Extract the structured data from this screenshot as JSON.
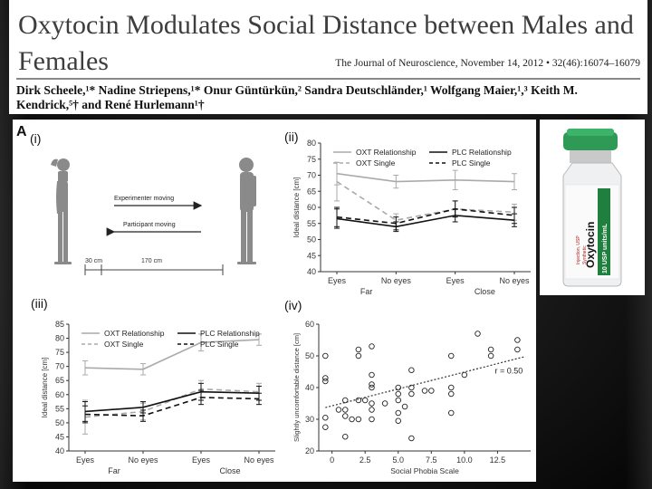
{
  "header": {
    "title": "Oxytocin Modulates Social Distance between Males and Females",
    "journal": "The Journal of Neuroscience, November 14, 2012 • 32(46):16074–16079",
    "authors": "Dirk Scheele,¹* Nadine Striepens,¹* Onur Güntürkün,² Sandra Deutschländer,¹ Wolfgang Maier,¹,³ Keith M. Kendrick,⁵† and René Hurlemann¹†"
  },
  "panel_labels": {
    "main": "A",
    "i": "(i)",
    "ii": "(ii)",
    "iii": "(iii)",
    "iv": "(iv)"
  },
  "diagram": {
    "experimenter_moving": "Experimenter moving",
    "participant_moving": "Participant moving",
    "dist1": "30 cm",
    "dist2": "170 cm"
  },
  "vial": {
    "brand": "Oxytocin",
    "dose": "10 USP units/mL",
    "lines": [
      "Injection, USP",
      "Synthetic"
    ]
  },
  "chart_data": [
    {
      "id": "ii",
      "type": "line",
      "ylabel": "Ideal distance [cm]",
      "ylim": [
        40,
        80
      ],
      "yticks": [
        40,
        45,
        50,
        55,
        60,
        65,
        70,
        75,
        80
      ],
      "categories": [
        "Eyes",
        "No eyes",
        "Eyes",
        "No eyes"
      ],
      "groups": [
        "Far",
        "Close"
      ],
      "series": [
        {
          "name": "OXT Relationship",
          "color": "#aaaaaa",
          "dash": "",
          "values": [
            70.5,
            68,
            68.5,
            68
          ],
          "errors": [
            3.5,
            2,
            3,
            2.5
          ]
        },
        {
          "name": "OXT Single",
          "color": "#aaaaaa",
          "dash": "6,4",
          "values": [
            68,
            56,
            59.5,
            58.5
          ],
          "errors": [
            6,
            2,
            2.5,
            2.5
          ]
        },
        {
          "name": "PLC Relationship",
          "color": "#111111",
          "dash": "",
          "values": [
            56.5,
            54,
            57.5,
            56
          ],
          "errors": [
            3,
            1.5,
            2,
            2
          ]
        },
        {
          "name": "PLC Single",
          "color": "#111111",
          "dash": "6,4",
          "values": [
            57,
            55,
            59.5,
            57.5
          ],
          "errors": [
            3,
            2,
            2.5,
            2.5
          ]
        }
      ]
    },
    {
      "id": "iii",
      "type": "line",
      "ylabel": "Ideal distance [cm]",
      "ylim": [
        40,
        85
      ],
      "yticks": [
        40,
        45,
        50,
        55,
        60,
        65,
        70,
        75,
        80,
        85
      ],
      "categories": [
        "Eyes",
        "No eyes",
        "Eyes",
        "No eyes"
      ],
      "groups": [
        "Far",
        "Close"
      ],
      "series": [
        {
          "name": "OXT Relationship",
          "color": "#aaaaaa",
          "dash": "",
          "values": [
            69.5,
            69,
            78.5,
            79.5
          ],
          "errors": [
            2.5,
            2,
            3,
            2
          ]
        },
        {
          "name": "OXT Single",
          "color": "#aaaaaa",
          "dash": "6,4",
          "values": [
            52,
            54,
            62,
            61
          ],
          "errors": [
            6,
            3,
            3,
            3
          ]
        },
        {
          "name": "PLC Relationship",
          "color": "#111111",
          "dash": "",
          "values": [
            54,
            55.5,
            61,
            60.5
          ],
          "errors": [
            3.5,
            2,
            3,
            2.5
          ]
        },
        {
          "name": "PLC Single",
          "color": "#111111",
          "dash": "6,4",
          "values": [
            53,
            52.5,
            59,
            58.5
          ],
          "errors": [
            3,
            2,
            2.5,
            2
          ]
        }
      ]
    },
    {
      "id": "iv",
      "type": "scatter",
      "xlabel": "Social Phobia Scale",
      "ylabel": "Slightly uncomfortable distance [cm]",
      "xlim": [
        -1,
        15
      ],
      "ylim": [
        20,
        60
      ],
      "xticks": [
        0,
        2.5,
        5.0,
        7.5,
        10.0,
        12.5
      ],
      "xticklabels": [
        "0",
        "2.5",
        "5.0",
        "7.5",
        "10.0",
        "12.5"
      ],
      "yticks": [
        20,
        30,
        40,
        50,
        60
      ],
      "annotation": "r = 0.50",
      "regression": {
        "x": [
          -0.5,
          14.5
        ],
        "y": [
          33.7,
          49.7
        ]
      },
      "points": [
        [
          -0.5,
          50
        ],
        [
          -0.5,
          43
        ],
        [
          -0.5,
          42
        ],
        [
          -0.5,
          30.5
        ],
        [
          -0.5,
          27.5
        ],
        [
          0.5,
          33
        ],
        [
          1,
          31
        ],
        [
          1,
          33
        ],
        [
          1,
          36
        ],
        [
          1,
          24.5
        ],
        [
          1.5,
          30
        ],
        [
          2,
          50
        ],
        [
          2,
          52
        ],
        [
          2,
          36
        ],
        [
          2,
          30
        ],
        [
          2.5,
          36
        ],
        [
          3,
          53
        ],
        [
          3,
          44
        ],
        [
          3,
          41
        ],
        [
          3,
          40
        ],
        [
          3,
          35
        ],
        [
          3,
          33
        ],
        [
          3,
          30
        ],
        [
          4,
          35
        ],
        [
          5,
          36
        ],
        [
          5,
          32
        ],
        [
          5,
          29.5
        ],
        [
          5,
          38
        ],
        [
          5,
          40
        ],
        [
          5.5,
          34
        ],
        [
          6,
          45.5
        ],
        [
          6,
          40
        ],
        [
          6,
          38
        ],
        [
          6,
          24
        ],
        [
          7,
          39
        ],
        [
          7.5,
          39
        ],
        [
          9,
          50
        ],
        [
          9,
          40
        ],
        [
          9,
          38
        ],
        [
          9,
          32
        ],
        [
          10,
          44
        ],
        [
          11,
          57
        ],
        [
          12,
          52
        ],
        [
          12,
          50
        ],
        [
          14,
          55
        ],
        [
          14,
          52
        ]
      ]
    }
  ]
}
